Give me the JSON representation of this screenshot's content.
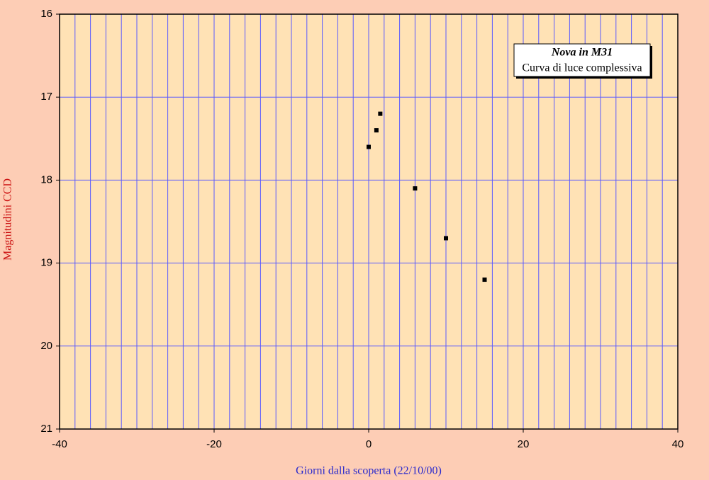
{
  "chart_data": {
    "type": "scatter",
    "x_label": "Giorni dalla scoperta (22/10/00)",
    "y_label": "Magnitudini CCD",
    "legend_title": "Nova in M31",
    "legend_text": "Curva di luce complessiva",
    "x": [
      0,
      1,
      1.5,
      6,
      10,
      15
    ],
    "values": [
      17.6,
      17.4,
      17.2,
      18.1,
      18.7,
      19.2
    ],
    "color": "#000000",
    "xlim": [
      -40,
      40
    ],
    "xticks": [
      -40,
      -20,
      0,
      20,
      40
    ],
    "xminorticks": [
      -38,
      -36,
      -34,
      -32,
      -30,
      -28,
      -26,
      -24,
      -22,
      -18,
      -16,
      -14,
      -12,
      -10,
      -8,
      -6,
      -4,
      -2,
      2,
      4,
      6,
      8,
      10,
      12,
      14,
      16,
      18,
      22,
      24,
      26,
      28,
      30,
      32,
      34,
      36,
      38
    ],
    "ylim": [
      21,
      16
    ],
    "yticks": [
      16,
      17,
      18,
      19,
      20,
      21
    ],
    "y_inverted": true,
    "grid": true,
    "grid_color": "#5a5aff",
    "legend": "top-right"
  }
}
